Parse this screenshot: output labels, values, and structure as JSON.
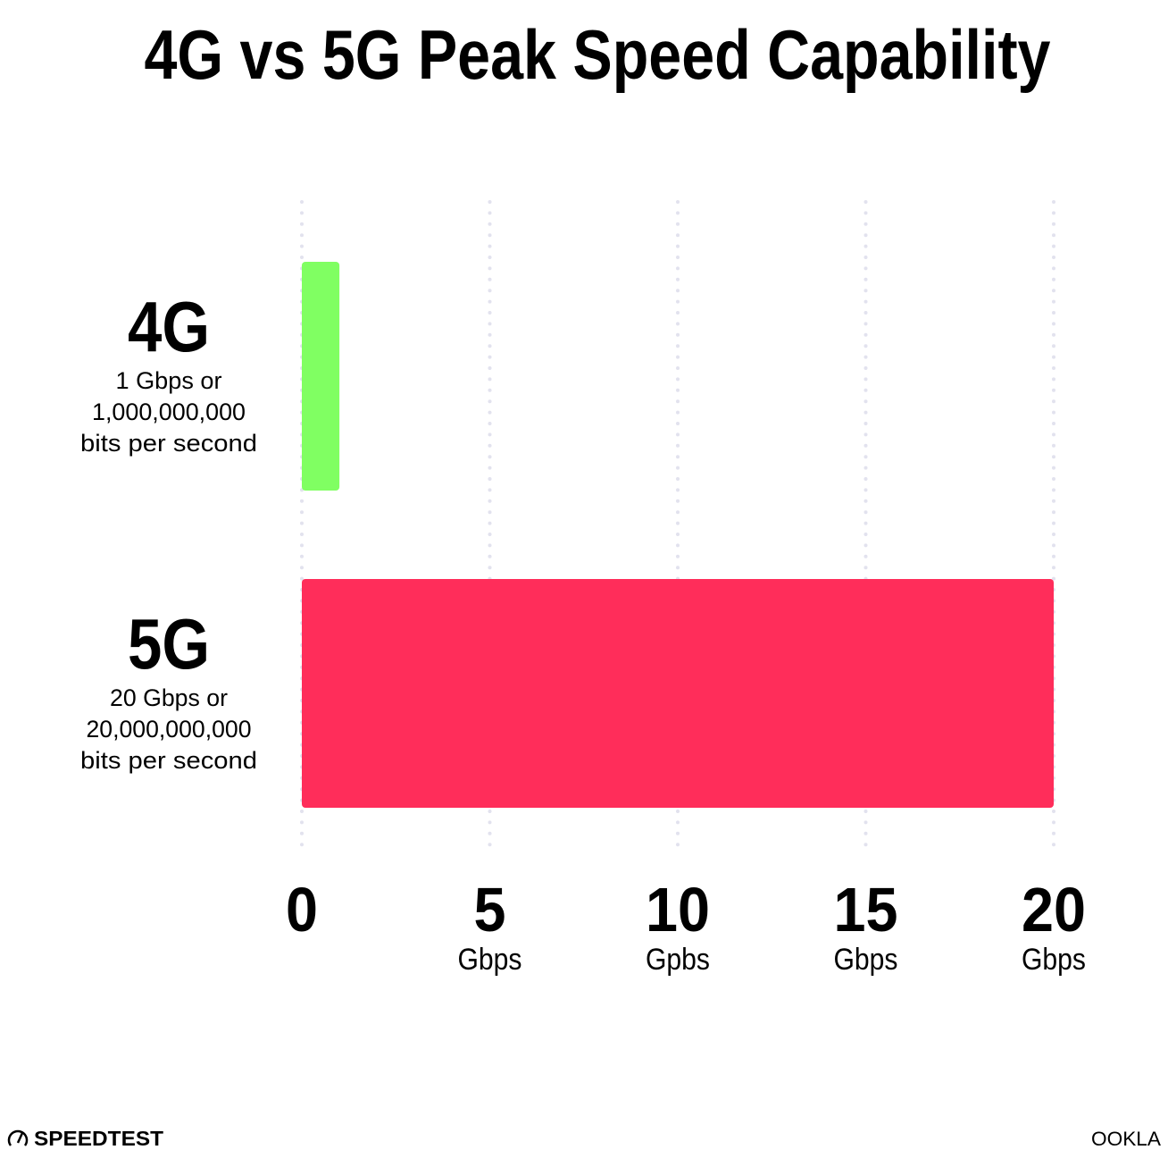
{
  "chart_data": {
    "type": "bar",
    "orientation": "horizontal",
    "title": "4G vs 5G Peak Speed Capability",
    "categories": [
      "4G",
      "5G"
    ],
    "category_sublabels": [
      [
        "1 Gbps or",
        "1,000,000,000",
        "bits per second"
      ],
      [
        "20 Gbps or",
        "20,000,000,000",
        "bits per second"
      ]
    ],
    "values": [
      1,
      20
    ],
    "unit": "Gbps",
    "colors": [
      "#80ff62",
      "#ff2d5a"
    ],
    "xlim": [
      0,
      20
    ],
    "x_ticks": [
      {
        "value": 0,
        "label": "0",
        "unit": ""
      },
      {
        "value": 5,
        "label": "5",
        "unit": "Gbps"
      },
      {
        "value": 10,
        "label": "10",
        "unit": "Gpbs"
      },
      {
        "value": 15,
        "label": "15",
        "unit": "Gbps"
      },
      {
        "value": 20,
        "label": "20",
        "unit": "Gbps"
      }
    ],
    "grid": true,
    "grid_style": "dotted",
    "grid_color": "#e2e2ee"
  },
  "branding": {
    "left_logo": "SPEEDTEST",
    "right_logo": "OOKLA"
  }
}
